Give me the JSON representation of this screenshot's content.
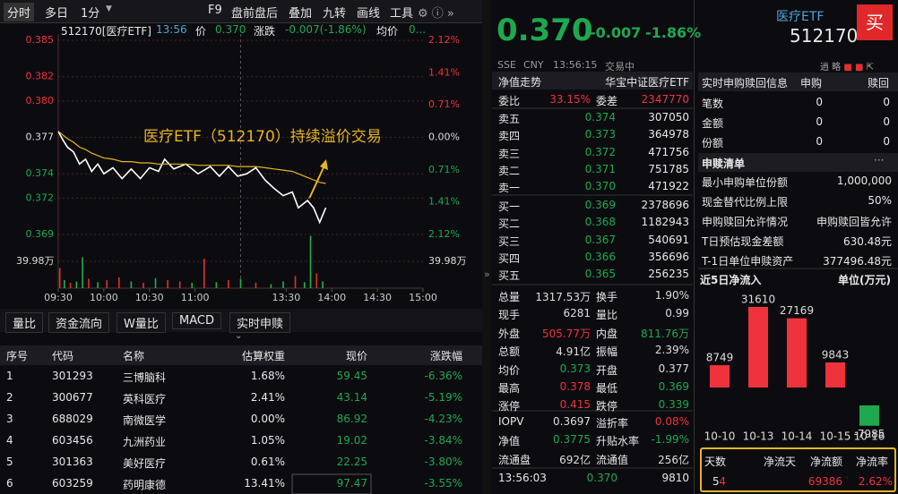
{
  "toolbar": {
    "tabs": [
      "分时",
      "多日",
      "1分",
      "F9",
      "盘前盘后",
      "叠加",
      "九转",
      "画线",
      "工具"
    ]
  },
  "quote_header": {
    "code": "512170[医疗ETF]",
    "time": "13:56",
    "price_label": "价",
    "price": "0.370",
    "change_label": "涨跌",
    "change": "-0.007(-1.86%)",
    "avg_label": "均价",
    "avg": "0..."
  },
  "chart_data": [
    {
      "type": "line",
      "annotation": "医疗ETF（512170）持续溢价交易",
      "grid": true,
      "x": [
        0,
        3,
        6,
        10,
        14,
        18,
        22,
        26,
        30,
        36,
        42,
        48,
        54,
        60,
        66,
        70,
        76,
        84,
        92,
        100,
        106,
        112,
        118,
        124,
        130,
        136,
        142,
        148,
        154,
        158,
        164,
        168,
        172,
        176
      ],
      "xlim": [
        0,
        240
      ],
      "xticks": [
        {
          "value": 0,
          "label": "09:30"
        },
        {
          "value": 30,
          "label": "10:00"
        },
        {
          "value": 60,
          "label": "10:30"
        },
        {
          "value": 90,
          "label": "11:00"
        },
        {
          "value": 150,
          "label": "13:30"
        },
        {
          "value": 180,
          "label": "14:00"
        },
        {
          "value": 210,
          "label": "14:30"
        },
        {
          "value": 240,
          "label": "15:00"
        }
      ],
      "ylim": [
        0.369,
        0.385
      ],
      "yticks": [
        0.385,
        0.382,
        {
          "value": 0.38,
          "label": "0.380"
        },
        0.377,
        0.374,
        0.372,
        0.369
      ],
      "y2lim": [
        -2.12,
        2.12
      ],
      "y2ticks": [
        {
          "value": 2.12,
          "label": "2.12%"
        },
        {
          "value": 1.41,
          "label": "1.41%"
        },
        {
          "value": 0.71,
          "label": "0.71%"
        },
        {
          "value": 0,
          "label": "0.00%"
        },
        {
          "value": -0.71,
          "label": "0.71%"
        },
        {
          "value": -1.41,
          "label": "1.41%"
        },
        {
          "value": -2.12,
          "label": "2.12%"
        }
      ],
      "series": [
        {
          "color": "#ffffff",
          "values": [
            0.3775,
            0.3768,
            0.3762,
            0.3758,
            0.3748,
            0.3752,
            0.3742,
            0.3748,
            0.374,
            0.3745,
            0.3736,
            0.3744,
            0.3736,
            0.3745,
            0.3742,
            0.3752,
            0.3744,
            0.3748,
            0.374,
            0.3746,
            0.3738,
            0.3746,
            0.3738,
            0.374,
            0.3745,
            0.3735,
            0.3728,
            0.3722,
            0.3725,
            0.3712,
            0.3718,
            0.3712,
            0.37,
            0.3712
          ]
        },
        {
          "color": "#e6b422",
          "values": [
            0.3775,
            0.3772,
            0.3769,
            0.3766,
            0.3762,
            0.376,
            0.3757,
            0.3755,
            0.3753,
            0.3752,
            0.375,
            0.375,
            0.3749,
            0.3749,
            0.3748,
            0.3748,
            0.3748,
            0.3748,
            0.3747,
            0.3747,
            0.3747,
            0.3747,
            0.3746,
            0.3746,
            0.3746,
            0.3745,
            0.3744,
            0.3743,
            0.3742,
            0.374,
            0.3737,
            0.3735,
            0.3733,
            0.3732
          ]
        }
      ]
    },
    {
      "type": "bar",
      "x": [
        1,
        4,
        8,
        12,
        16,
        20,
        26,
        32,
        40,
        48,
        56,
        64,
        72,
        80,
        88,
        96,
        104,
        112,
        120,
        130,
        140,
        148,
        156,
        162,
        166,
        170,
        174
      ],
      "values": [
        30,
        12,
        8,
        10,
        46,
        14,
        9,
        12,
        16,
        10,
        8,
        15,
        12,
        10,
        8,
        44,
        9,
        12,
        14,
        8,
        6,
        10,
        18,
        9,
        78,
        22,
        10
      ],
      "colors": [
        "#e03030",
        "#20b050",
        "#e03030",
        "#20b050",
        "#20b050",
        "#e03030",
        "#20b050",
        "#e03030",
        "#e03030",
        "#20b050",
        "#e03030",
        "#20b050",
        "#e03030",
        "#e03030",
        "#20b050",
        "#e03030",
        "#20b050",
        "#e03030",
        "#20b050",
        "#e03030",
        "#20b050",
        "#20b050",
        "#e03030",
        "#20b050",
        "#20b050",
        "#e03030",
        "#20b050"
      ],
      "ylim": [
        0,
        80
      ],
      "yticks": [
        {
          "value": 39.98,
          "label": "39.98万"
        }
      ]
    },
    {
      "type": "bar",
      "title": "近5日净流入",
      "unit": "单位(万元)",
      "categories": [
        "10-10",
        "10-13",
        "10-14",
        "10-15",
        "10-16"
      ],
      "values": [
        8749,
        31610,
        27169,
        9843,
        -7985
      ],
      "up_color": "#f0323c",
      "down_color": "#1ea84f"
    }
  ],
  "tabs": [
    "量比",
    "资金流向",
    "W量比",
    "MACD",
    "实时申赎"
  ],
  "table": {
    "headers": [
      "序号",
      "代码",
      "名称",
      "估算权重",
      "现价",
      "涨跌幅"
    ],
    "rows": [
      [
        "1",
        "301293",
        "三博脑科",
        "1.68%",
        "59.45",
        "-6.36%"
      ],
      [
        "2",
        "300677",
        "英科医疗",
        "2.41%",
        "43.14",
        "-5.19%"
      ],
      [
        "3",
        "688029",
        "南微医学",
        "0.00%",
        "86.92",
        "-4.23%"
      ],
      [
        "4",
        "603456",
        "九洲药业",
        "1.05%",
        "19.02",
        "-3.84%"
      ],
      [
        "5",
        "301363",
        "美好医疗",
        "0.61%",
        "22.25",
        "-3.80%"
      ],
      [
        "6",
        "603259",
        "药明康德",
        "13.41%",
        "97.47",
        "-3.55%"
      ]
    ]
  },
  "quote": {
    "price": "0.370",
    "change": "-0.007",
    "change_pct": "-1.86%",
    "status": [
      "SSE",
      "CNY",
      "13:56:15",
      "交易中"
    ],
    "nav_trend": "净值走势",
    "fund_name": "华宝中证医疗ETF",
    "bid_ratio_label": "委比",
    "bid_ratio": "33.15%",
    "bid_diff_label": "委差",
    "bid_diff": "2347770"
  },
  "order_book": {
    "sells": [
      [
        "卖五",
        "0.374",
        "307050"
      ],
      [
        "卖四",
        "0.373",
        "364978"
      ],
      [
        "卖三",
        "0.372",
        "471756"
      ],
      [
        "卖二",
        "0.371",
        "751785"
      ],
      [
        "卖一",
        "0.370",
        "471922"
      ]
    ],
    "buys": [
      [
        "买一",
        "0.369",
        "2378696"
      ],
      [
        "买二",
        "0.368",
        "1182943"
      ],
      [
        "买三",
        "0.367",
        "540691"
      ],
      [
        "买四",
        "0.366",
        "356696"
      ],
      [
        "买五",
        "0.365",
        "256235"
      ]
    ]
  },
  "stats": [
    {
      "cells": [
        "总量",
        "1317.53万",
        "换手",
        "1.90%"
      ],
      "colors": [
        "#dddddd",
        "#dddddd"
      ]
    },
    {
      "cells": [
        "现手",
        "6281",
        "量比",
        "0.99"
      ],
      "colors": [
        "#dddddd",
        "#dddddd"
      ]
    },
    {
      "cells": [
        "外盘",
        "505.77万",
        "内盘",
        "811.76万"
      ],
      "colors": [
        "#f0323c",
        "#1ea84f"
      ]
    },
    {
      "cells": [
        "总额",
        "4.91亿",
        "振幅",
        "2.39%"
      ],
      "colors": [
        "#dddddd",
        "#dddddd"
      ]
    },
    {
      "cells": [
        "均价",
        "0.373",
        "开盘",
        "0.377"
      ],
      "colors": [
        "#1ea84f",
        "#dddddd"
      ]
    },
    {
      "cells": [
        "最高",
        "0.378",
        "最低",
        "0.369"
      ],
      "colors": [
        "#f0323c",
        "#1ea84f"
      ]
    },
    {
      "cells": [
        "涨停",
        "0.415",
        "跌停",
        "0.339"
      ],
      "colors": [
        "#f0323c",
        "#1ea84f"
      ]
    },
    {
      "cells": [
        "IOPV",
        "0.3697",
        "溢折率",
        "0.08%"
      ],
      "colors": [
        "#dddddd",
        "#f0323c"
      ]
    },
    {
      "cells": [
        "净值",
        "0.3775",
        "升贴水率",
        "-1.99%"
      ],
      "colors": [
        "#1ea84f",
        "#1ea84f"
      ]
    },
    {
      "cells": [
        "流通盘",
        "692亿",
        "流通值",
        "256亿"
      ],
      "colors": [
        "#dddddd",
        "#dddddd"
      ]
    }
  ],
  "trades": [
    [
      "13:56:03",
      "0.370",
      "9810"
    ]
  ],
  "info": {
    "name": "医疗ETF",
    "code": "512170",
    "buy": "买",
    "realtime_title": "实时申购赎回信息",
    "realtime_cols": [
      "申购",
      "赎回"
    ],
    "realtime_rows": [
      [
        "笔数",
        "0",
        "0"
      ],
      [
        "金额",
        "0",
        "0"
      ],
      [
        "份额",
        "0",
        "0"
      ]
    ],
    "list_title": "申赎清单",
    "list_rows": [
      [
        "最小申购单位份额",
        "1,000,000"
      ],
      [
        "现金替代比例上限",
        "50%"
      ],
      [
        "申购赎回允许情况",
        "申购赎回皆允许"
      ],
      [
        "T日预估现金差额",
        "630.48元"
      ],
      [
        "T-1日单位申赎资产",
        "377496.48元"
      ]
    ],
    "summary_headers": [
      "天数",
      "净流天",
      "净流额",
      "净流率"
    ],
    "summary_values": [
      "5",
      "4",
      "69386",
      "2.62%"
    ]
  }
}
